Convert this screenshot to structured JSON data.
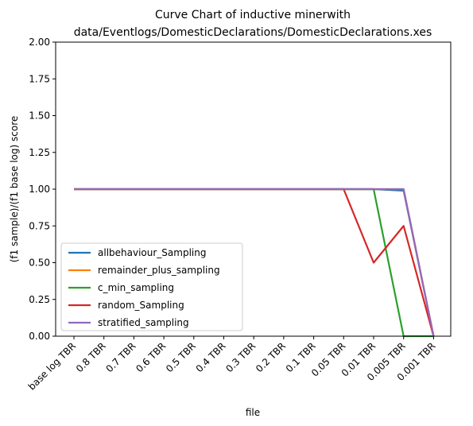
{
  "chart_data": {
    "type": "line",
    "title_lines": [
      "Curve Chart of inductive minerwith",
      "data/Eventlogs/DomesticDeclarations/DomesticDeclarations.xes"
    ],
    "xlabel": "file",
    "ylabel": "(f1 sample)/(f1 base log) score",
    "ylim": [
      0,
      2.0
    ],
    "yticks": [
      "0.00",
      "0.25",
      "0.50",
      "0.75",
      "1.00",
      "1.25",
      "1.50",
      "1.75",
      "2.00"
    ],
    "categories": [
      "base log TBR",
      "0.8 TBR",
      "0.7 TBR",
      "0.6 TBR",
      "0.5 TBR",
      "0.4 TBR",
      "0.3 TBR",
      "0.2 TBR",
      "0.1 TBR",
      "0.05 TBR",
      "0.01 TBR",
      "0.005 TBR",
      "0.001 TBR"
    ],
    "grid": false,
    "legend_position": "lower-left",
    "series": [
      {
        "name": "allbehaviour_Sampling",
        "color": "#1f77b4",
        "values": [
          1,
          1,
          1,
          1,
          1,
          1,
          1,
          1,
          1,
          1,
          1,
          0.99,
          0
        ]
      },
      {
        "name": "remainder_plus_sampling",
        "color": "#ff7f0e",
        "values": [
          1,
          1,
          1,
          1,
          1,
          1,
          1,
          1,
          1,
          1,
          1,
          1,
          0
        ]
      },
      {
        "name": "c_min_sampling",
        "color": "#2ca02c",
        "values": [
          1,
          1,
          1,
          1,
          1,
          1,
          1,
          1,
          1,
          1,
          1,
          0,
          0
        ]
      },
      {
        "name": "random_Sampling",
        "color": "#d62728",
        "values": [
          1,
          1,
          1,
          1,
          1,
          1,
          1,
          1,
          1,
          1,
          0.5,
          0.75,
          0
        ]
      },
      {
        "name": "stratified_sampling",
        "color": "#9467bd",
        "values": [
          1,
          1,
          1,
          1,
          1,
          1,
          1,
          1,
          1,
          1,
          1,
          1,
          0
        ]
      }
    ]
  }
}
